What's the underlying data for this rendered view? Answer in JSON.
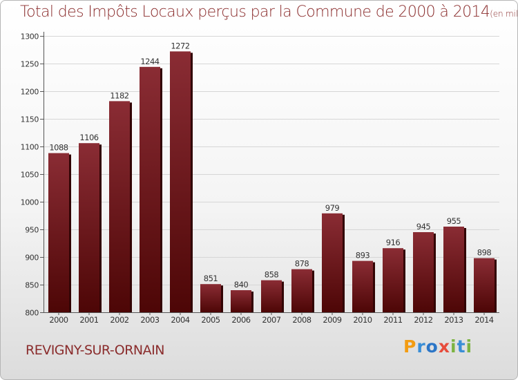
{
  "header": {
    "title": "Total des Impôts Locaux perçus par la Commune de 2000 à 2014",
    "unit": "(en milliers d'€)"
  },
  "commune": "REVIGNY-SUR-ORNAIN",
  "logo": {
    "letters": [
      "P",
      "r",
      "o",
      "x",
      "i",
      "t",
      "i"
    ],
    "colors": [
      "#f39c12",
      "#3a8ed6",
      "#2c76c7",
      "#e74c3c",
      "#7cb342",
      "#3a8ed6",
      "#7cb342"
    ]
  },
  "colors": {
    "bar_top": "#8a2c34",
    "bar_bottom": "#4d0606",
    "bar_side": "#320404",
    "text": "#8a2c2c",
    "axis": "#555555",
    "grid": "#d6d6d6"
  },
  "chart_data": {
    "type": "bar",
    "title": "Total des Impôts Locaux perçus par la Commune de 2000 à 2014",
    "xlabel": "",
    "ylabel": "",
    "ylim": [
      800,
      1300
    ],
    "yticks": [
      800,
      850,
      900,
      950,
      1000,
      1050,
      1100,
      1150,
      1200,
      1250,
      1300
    ],
    "categories": [
      "2000",
      "2001",
      "2002",
      "2003",
      "2004",
      "2005",
      "2006",
      "2007",
      "2008",
      "2009",
      "2010",
      "2011",
      "2012",
      "2013",
      "2014"
    ],
    "values": [
      1088,
      1106,
      1182,
      1244,
      1272,
      851,
      840,
      858,
      878,
      979,
      893,
      916,
      945,
      955,
      898
    ],
    "grid": true
  }
}
